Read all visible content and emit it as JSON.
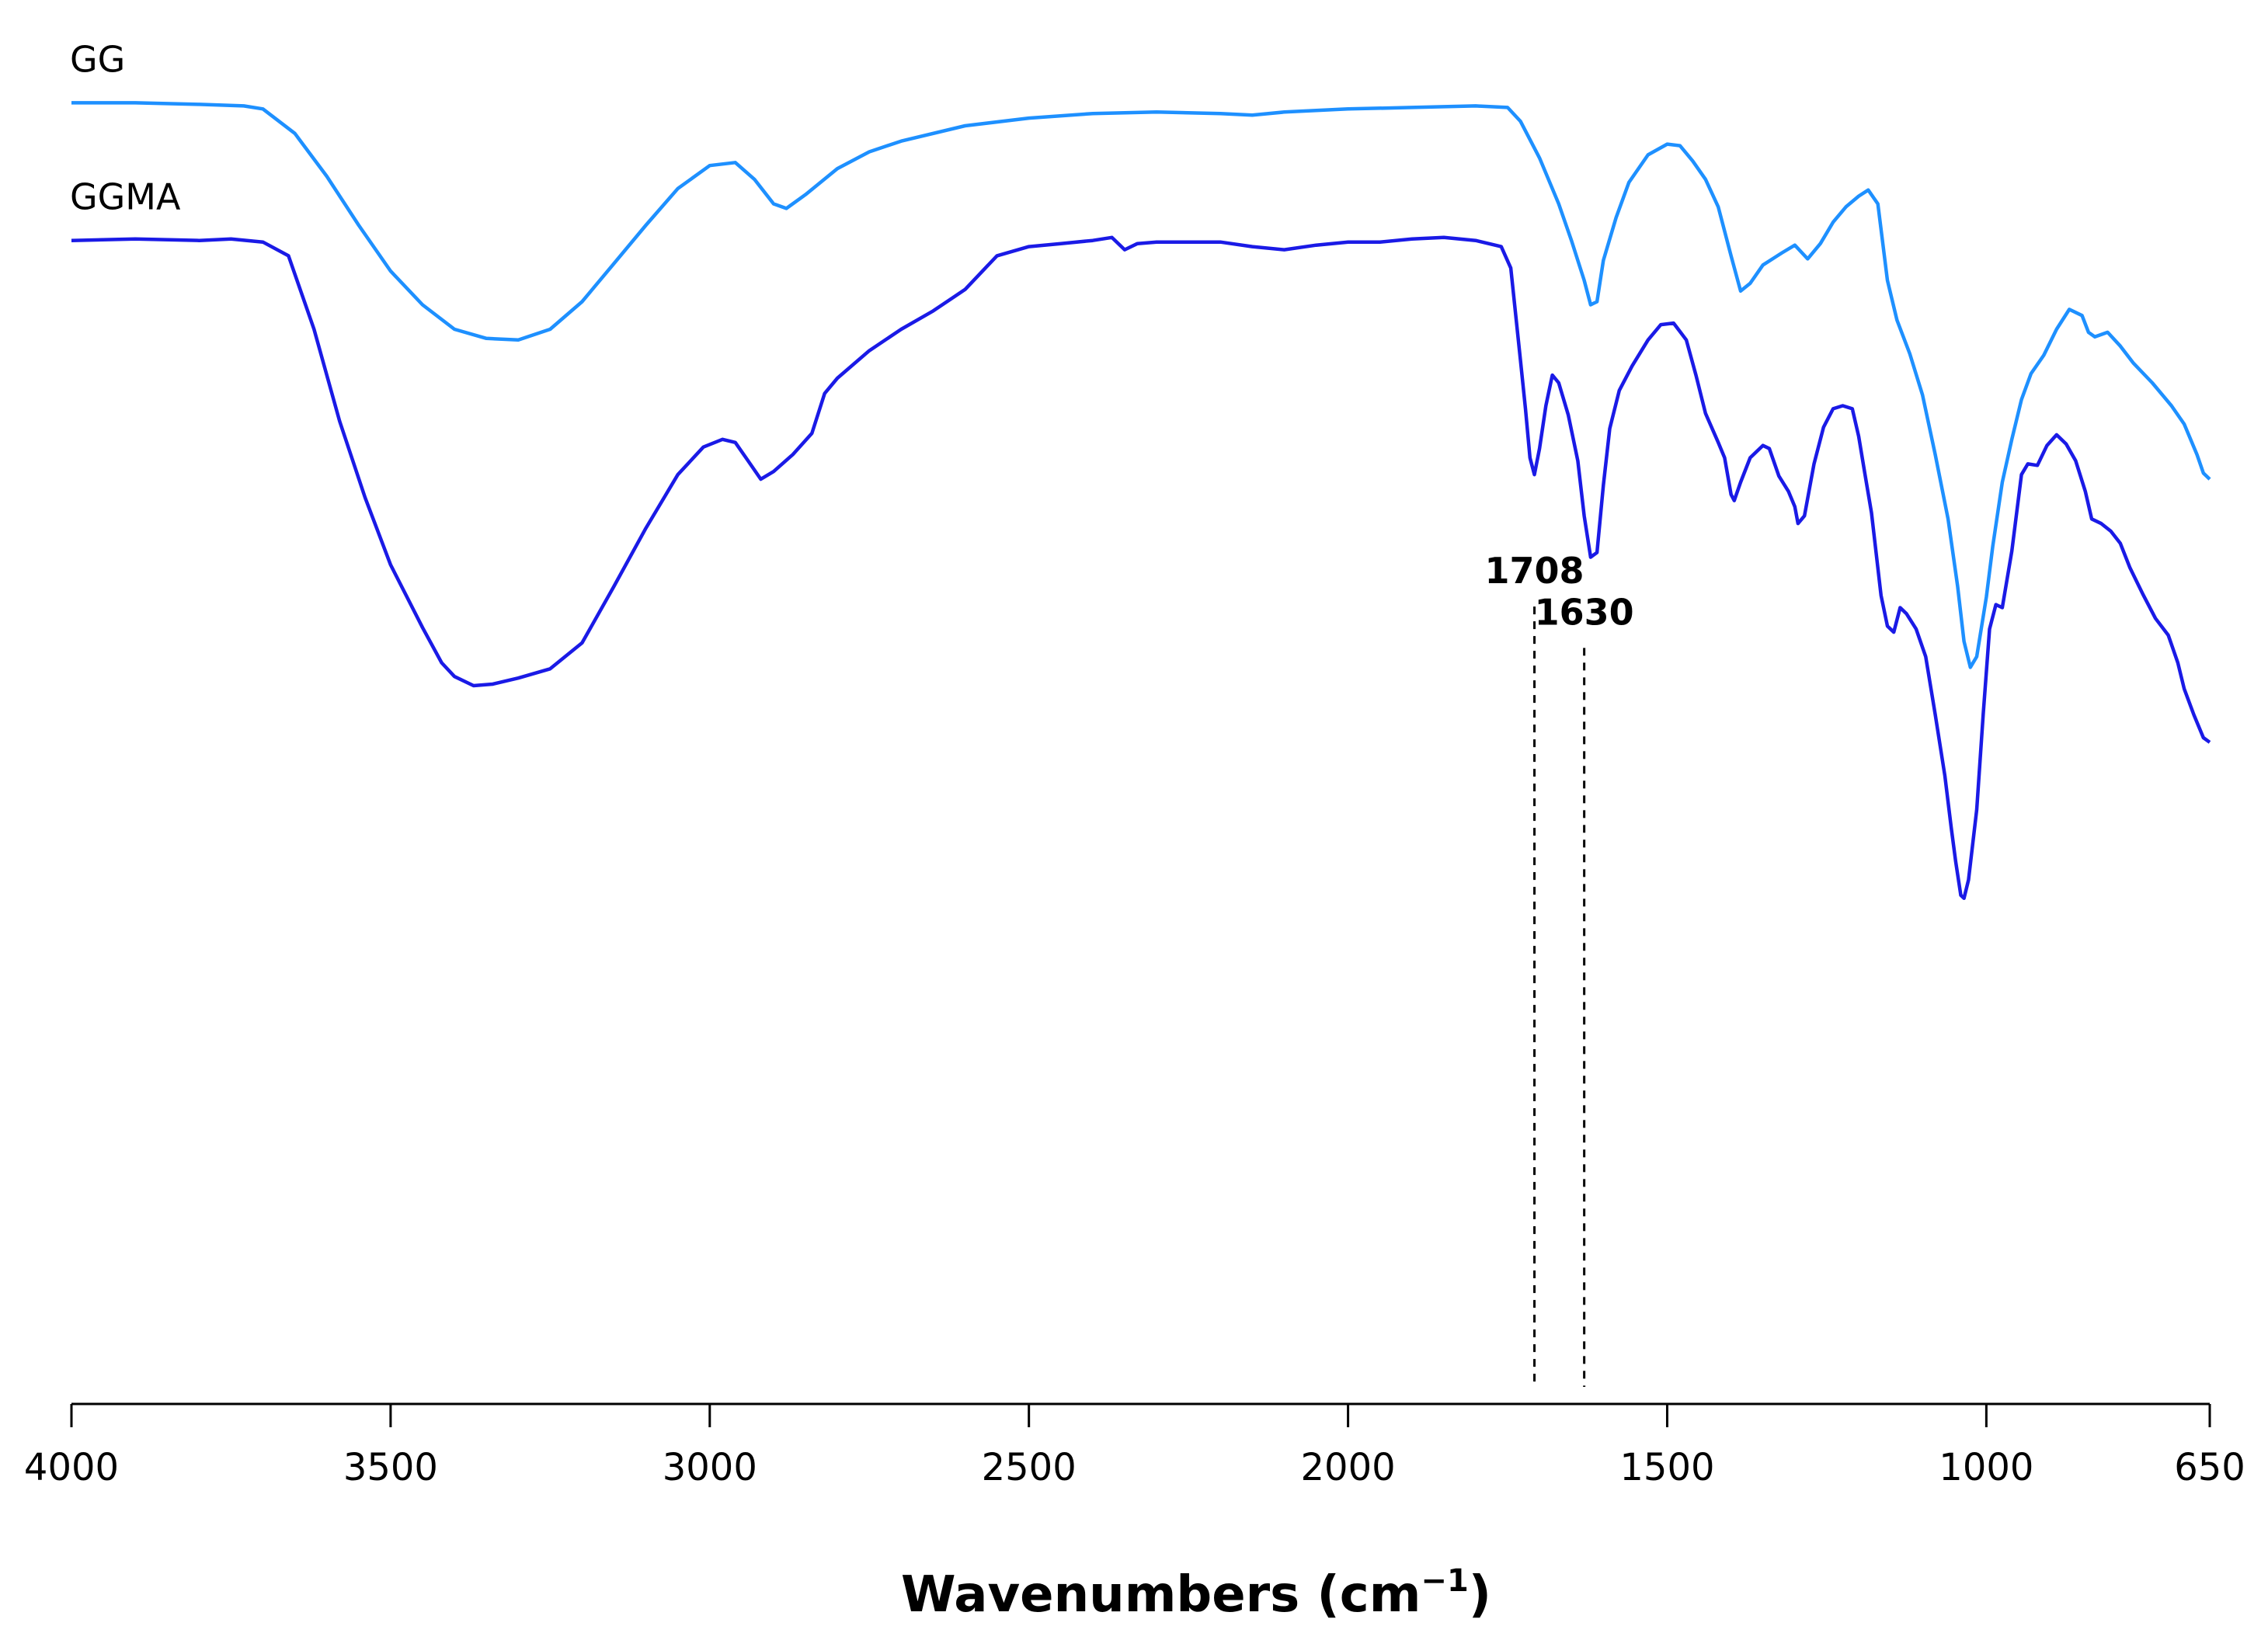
{
  "chart_data": {
    "type": "line",
    "title": "",
    "xlabel": "Wavenumbers (cm",
    "xlabel_sup": "−1",
    "xlabel_close": ")",
    "ylabel": "",
    "xlim": [
      4000,
      650
    ],
    "x_reversed": true,
    "y_axis_shown": false,
    "grid": false,
    "x_ticks": [
      4000,
      3500,
      3000,
      2500,
      2000,
      1500,
      1000,
      650
    ],
    "x_tick_labels": [
      "4000",
      "3500",
      "3000",
      "2500",
      "2000",
      "1500",
      "1000",
      "650"
    ],
    "y_unit": "relative transmittance (arbitrary units, offset per trace)",
    "ylim": [
      0,
      1
    ],
    "series": [
      {
        "name": "GG",
        "color": "#1e90ff",
        "points": [
          [
            4000,
            0.948
          ],
          [
            3900,
            0.948
          ],
          [
            3800,
            0.947
          ],
          [
            3730,
            0.946
          ],
          [
            3700,
            0.944
          ],
          [
            3650,
            0.928
          ],
          [
            3600,
            0.9
          ],
          [
            3550,
            0.868
          ],
          [
            3500,
            0.838
          ],
          [
            3450,
            0.816
          ],
          [
            3400,
            0.8
          ],
          [
            3350,
            0.794
          ],
          [
            3300,
            0.793
          ],
          [
            3250,
            0.8
          ],
          [
            3200,
            0.818
          ],
          [
            3150,
            0.843
          ],
          [
            3100,
            0.868
          ],
          [
            3050,
            0.892
          ],
          [
            3000,
            0.907
          ],
          [
            2960,
            0.909
          ],
          [
            2930,
            0.898
          ],
          [
            2900,
            0.882
          ],
          [
            2880,
            0.879
          ],
          [
            2850,
            0.888
          ],
          [
            2800,
            0.905
          ],
          [
            2750,
            0.916
          ],
          [
            2700,
            0.923
          ],
          [
            2600,
            0.933
          ],
          [
            2500,
            0.938
          ],
          [
            2400,
            0.941
          ],
          [
            2300,
            0.942
          ],
          [
            2200,
            0.941
          ],
          [
            2150,
            0.94
          ],
          [
            2100,
            0.942
          ],
          [
            2000,
            0.944
          ],
          [
            1900,
            0.945
          ],
          [
            1800,
            0.946
          ],
          [
            1750,
            0.945
          ],
          [
            1730,
            0.936
          ],
          [
            1700,
            0.912
          ],
          [
            1670,
            0.882
          ],
          [
            1650,
            0.858
          ],
          [
            1630,
            0.832
          ],
          [
            1620,
            0.816
          ],
          [
            1610,
            0.818
          ],
          [
            1600,
            0.845
          ],
          [
            1580,
            0.873
          ],
          [
            1560,
            0.896
          ],
          [
            1530,
            0.914
          ],
          [
            1500,
            0.921
          ],
          [
            1480,
            0.92
          ],
          [
            1460,
            0.91
          ],
          [
            1440,
            0.898
          ],
          [
            1420,
            0.88
          ],
          [
            1400,
            0.848
          ],
          [
            1385,
            0.825
          ],
          [
            1370,
            0.83
          ],
          [
            1350,
            0.842
          ],
          [
            1320,
            0.85
          ],
          [
            1300,
            0.855
          ],
          [
            1280,
            0.846
          ],
          [
            1260,
            0.856
          ],
          [
            1240,
            0.87
          ],
          [
            1220,
            0.88
          ],
          [
            1200,
            0.887
          ],
          [
            1185,
            0.891
          ],
          [
            1170,
            0.882
          ],
          [
            1155,
            0.832
          ],
          [
            1140,
            0.806
          ],
          [
            1120,
            0.784
          ],
          [
            1100,
            0.757
          ],
          [
            1080,
            0.718
          ],
          [
            1060,
            0.676
          ],
          [
            1045,
            0.632
          ],
          [
            1035,
            0.596
          ],
          [
            1025,
            0.579
          ],
          [
            1015,
            0.586
          ],
          [
            1000,
            0.625
          ],
          [
            990,
            0.658
          ],
          [
            975,
            0.7
          ],
          [
            960,
            0.728
          ],
          [
            945,
            0.754
          ],
          [
            930,
            0.771
          ],
          [
            910,
            0.783
          ],
          [
            890,
            0.8
          ],
          [
            870,
            0.813
          ],
          [
            850,
            0.809
          ],
          [
            840,
            0.798
          ],
          [
            830,
            0.795
          ],
          [
            810,
            0.798
          ],
          [
            790,
            0.789
          ],
          [
            770,
            0.778
          ],
          [
            740,
            0.765
          ],
          [
            710,
            0.75
          ],
          [
            690,
            0.738
          ],
          [
            670,
            0.718
          ],
          [
            660,
            0.706
          ],
          [
            650,
            0.702
          ]
        ]
      },
      {
        "name": "GGMA",
        "color": "#1a1ae6",
        "points": [
          [
            4000,
            0.858
          ],
          [
            3900,
            0.859
          ],
          [
            3800,
            0.858
          ],
          [
            3750,
            0.859
          ],
          [
            3700,
            0.857
          ],
          [
            3660,
            0.848
          ],
          [
            3620,
            0.8
          ],
          [
            3580,
            0.74
          ],
          [
            3540,
            0.69
          ],
          [
            3500,
            0.646
          ],
          [
            3450,
            0.605
          ],
          [
            3420,
            0.582
          ],
          [
            3400,
            0.573
          ],
          [
            3370,
            0.567
          ],
          [
            3340,
            0.568
          ],
          [
            3300,
            0.572
          ],
          [
            3250,
            0.578
          ],
          [
            3200,
            0.595
          ],
          [
            3150,
            0.632
          ],
          [
            3100,
            0.67
          ],
          [
            3050,
            0.705
          ],
          [
            3010,
            0.723
          ],
          [
            2980,
            0.728
          ],
          [
            2960,
            0.726
          ],
          [
            2940,
            0.714
          ],
          [
            2920,
            0.702
          ],
          [
            2900,
            0.707
          ],
          [
            2870,
            0.718
          ],
          [
            2840,
            0.732
          ],
          [
            2820,
            0.758
          ],
          [
            2800,
            0.768
          ],
          [
            2750,
            0.786
          ],
          [
            2700,
            0.8
          ],
          [
            2650,
            0.812
          ],
          [
            2600,
            0.826
          ],
          [
            2550,
            0.848
          ],
          [
            2500,
            0.854
          ],
          [
            2450,
            0.856
          ],
          [
            2400,
            0.858
          ],
          [
            2370,
            0.86
          ],
          [
            2350,
            0.852
          ],
          [
            2330,
            0.856
          ],
          [
            2300,
            0.857
          ],
          [
            2200,
            0.857
          ],
          [
            2150,
            0.854
          ],
          [
            2100,
            0.852
          ],
          [
            2050,
            0.855
          ],
          [
            2000,
            0.857
          ],
          [
            1950,
            0.857
          ],
          [
            1900,
            0.859
          ],
          [
            1850,
            0.86
          ],
          [
            1800,
            0.858
          ],
          [
            1760,
            0.854
          ],
          [
            1745,
            0.84
          ],
          [
            1730,
            0.78
          ],
          [
            1722,
            0.748
          ],
          [
            1715,
            0.716
          ],
          [
            1708,
            0.705
          ],
          [
            1700,
            0.722
          ],
          [
            1690,
            0.75
          ],
          [
            1680,
            0.77
          ],
          [
            1670,
            0.765
          ],
          [
            1655,
            0.744
          ],
          [
            1640,
            0.714
          ],
          [
            1630,
            0.678
          ],
          [
            1620,
            0.651
          ],
          [
            1610,
            0.654
          ],
          [
            1600,
            0.698
          ],
          [
            1590,
            0.735
          ],
          [
            1575,
            0.76
          ],
          [
            1555,
            0.776
          ],
          [
            1530,
            0.793
          ],
          [
            1510,
            0.803
          ],
          [
            1490,
            0.804
          ],
          [
            1470,
            0.793
          ],
          [
            1455,
            0.77
          ],
          [
            1440,
            0.745
          ],
          [
            1420,
            0.726
          ],
          [
            1410,
            0.716
          ],
          [
            1400,
            0.692
          ],
          [
            1395,
            0.688
          ],
          [
            1385,
            0.7
          ],
          [
            1370,
            0.716
          ],
          [
            1350,
            0.724
          ],
          [
            1340,
            0.722
          ],
          [
            1325,
            0.704
          ],
          [
            1310,
            0.694
          ],
          [
            1300,
            0.684
          ],
          [
            1295,
            0.673
          ],
          [
            1285,
            0.678
          ],
          [
            1270,
            0.712
          ],
          [
            1255,
            0.736
          ],
          [
            1240,
            0.748
          ],
          [
            1225,
            0.75
          ],
          [
            1210,
            0.748
          ],
          [
            1200,
            0.73
          ],
          [
            1190,
            0.705
          ],
          [
            1180,
            0.68
          ],
          [
            1165,
            0.626
          ],
          [
            1155,
            0.606
          ],
          [
            1145,
            0.602
          ],
          [
            1135,
            0.618
          ],
          [
            1125,
            0.614
          ],
          [
            1110,
            0.604
          ],
          [
            1095,
            0.586
          ],
          [
            1080,
            0.548
          ],
          [
            1065,
            0.508
          ],
          [
            1055,
            0.474
          ],
          [
            1048,
            0.452
          ],
          [
            1040,
            0.43
          ],
          [
            1035,
            0.428
          ],
          [
            1028,
            0.44
          ],
          [
            1015,
            0.486
          ],
          [
            1005,
            0.548
          ],
          [
            995,
            0.604
          ],
          [
            985,
            0.62
          ],
          [
            975,
            0.618
          ],
          [
            960,
            0.655
          ],
          [
            945,
            0.705
          ],
          [
            935,
            0.712
          ],
          [
            920,
            0.711
          ],
          [
            905,
            0.724
          ],
          [
            890,
            0.731
          ],
          [
            875,
            0.725
          ],
          [
            860,
            0.714
          ],
          [
            845,
            0.694
          ],
          [
            835,
            0.676
          ],
          [
            820,
            0.673
          ],
          [
            805,
            0.668
          ],
          [
            790,
            0.66
          ],
          [
            775,
            0.644
          ],
          [
            755,
            0.627
          ],
          [
            735,
            0.611
          ],
          [
            715,
            0.6
          ],
          [
            700,
            0.582
          ],
          [
            690,
            0.565
          ],
          [
            675,
            0.548
          ],
          [
            660,
            0.533
          ],
          [
            650,
            0.53
          ]
        ]
      }
    ],
    "annotations": [
      {
        "label": "1708",
        "x": 1708
      },
      {
        "label": "1630",
        "x": 1630
      }
    ]
  }
}
